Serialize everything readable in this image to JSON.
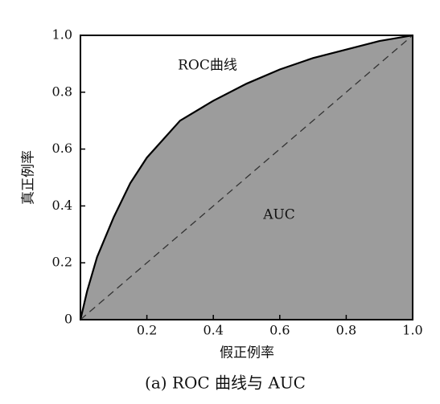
{
  "chart_data": {
    "type": "line",
    "caption": "(a) ROC 曲线与 AUC",
    "xlabel": "假正例率",
    "ylabel": "真正例率",
    "annotations": [
      "ROC曲线",
      "AUC"
    ],
    "xlim": [
      0,
      1
    ],
    "ylim": [
      0,
      1
    ],
    "xticks": [
      0.2,
      0.4,
      0.6,
      0.8,
      {
        "value": 1,
        "label": "1.0"
      }
    ],
    "yticks": [
      0,
      0.2,
      0.4,
      0.6,
      0.8,
      {
        "value": 1,
        "label": "1.0"
      }
    ],
    "series": [
      {
        "x": [
          0,
          0.02,
          0.05,
          0.1,
          0.15,
          0.2,
          0.3,
          0.4,
          0.5,
          0.6,
          0.7,
          0.8,
          0.9,
          1
        ],
        "values": [
          0,
          0.1,
          0.22,
          0.36,
          0.48,
          0.57,
          0.7,
          0.77,
          0.83,
          0.88,
          0.92,
          0.95,
          0.98,
          1
        ],
        "color": "#000000",
        "fill": "#9c9c9c"
      },
      {
        "x": [
          0,
          1
        ],
        "values": [
          0,
          1
        ],
        "color": "#333333",
        "dashed": true
      }
    ]
  }
}
